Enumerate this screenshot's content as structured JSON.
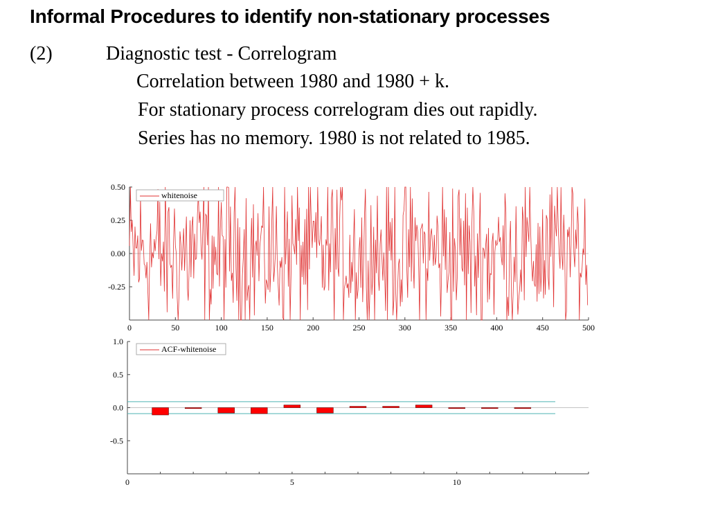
{
  "slide": {
    "title": "Informal Procedures to identify non-stationary processes",
    "item_number": "(2)",
    "item_heading": "Diagnostic test - Correlogram",
    "lines": [
      "Correlation between 1980 and 1980 + k.",
      "For stationary process correlogram dies out rapidly.",
      "Series has no memory. 1980 is not related to 1985."
    ]
  },
  "chart_data": [
    {
      "type": "line",
      "series": [
        {
          "name": "whitenoise",
          "color": "#e03030"
        }
      ],
      "x_ticks": [
        "0",
        "50",
        "100",
        "150",
        "200",
        "250",
        "300",
        "350",
        "400",
        "450",
        "500"
      ],
      "y_ticks": [
        "0.50",
        "0.25",
        "0.00",
        "-0.25"
      ],
      "xlim": [
        0,
        500
      ],
      "ylim": [
        -0.5,
        0.5
      ],
      "n_points": 500,
      "legend": "top-left",
      "grid": false
    },
    {
      "type": "bar",
      "series": [
        {
          "name": "ACF-whitenoise",
          "color": "#ff0000"
        }
      ],
      "lags": [
        1,
        2,
        3,
        4,
        5,
        6,
        7,
        8,
        9,
        10,
        11,
        12
      ],
      "values": [
        -0.11,
        -0.01,
        -0.08,
        -0.09,
        0.04,
        -0.08,
        0.02,
        0.02,
        0.04,
        -0.005,
        -0.01,
        -0.005
      ],
      "confidence_band": [
        -0.09,
        0.09
      ],
      "band_color": "#4db3b3",
      "x_ticks": [
        "0",
        "5",
        "10"
      ],
      "y_ticks": [
        "1.0",
        "0.5",
        "0.0",
        "-0.5"
      ],
      "xlim": [
        0,
        14
      ],
      "ylim": [
        -1,
        1
      ],
      "legend": "top-left",
      "grid": false
    }
  ]
}
